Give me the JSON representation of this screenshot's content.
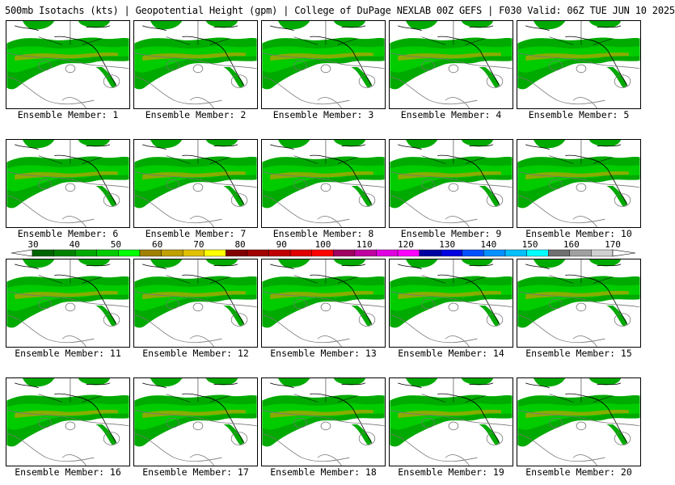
{
  "header": {
    "title": "500mb Isotachs (kts) | Geopotential Height (gpm) | College of DuPage NEXLAB   00Z GEFS | F030 Valid: 06Z TUE JUN 10 2025"
  },
  "panels": [
    {
      "label": "Ensemble Member: 1"
    },
    {
      "label": "Ensemble Member: 2"
    },
    {
      "label": "Ensemble Member: 3"
    },
    {
      "label": "Ensemble Member: 4"
    },
    {
      "label": "Ensemble Member: 5"
    },
    {
      "label": "Ensemble Member: 6"
    },
    {
      "label": "Ensemble Member: 7"
    },
    {
      "label": "Ensemble Member: 8"
    },
    {
      "label": "Ensemble Member: 9"
    },
    {
      "label": "Ensemble Member: 10"
    },
    {
      "label": "Ensemble Member: 11"
    },
    {
      "label": "Ensemble Member: 12"
    },
    {
      "label": "Ensemble Member: 13"
    },
    {
      "label": "Ensemble Member: 14"
    },
    {
      "label": "Ensemble Member: 15"
    },
    {
      "label": "Ensemble Member: 16"
    },
    {
      "label": "Ensemble Member: 17"
    },
    {
      "label": "Ensemble Member: 18"
    },
    {
      "label": "Ensemble Member: 19"
    },
    {
      "label": "Ensemble Member: 20"
    }
  ],
  "colorbar": {
    "ticks": [
      "30",
      "40",
      "50",
      "60",
      "70",
      "80",
      "90",
      "100",
      "110",
      "120",
      "130",
      "140",
      "150",
      "160",
      "170"
    ],
    "colors": [
      "#006400",
      "#008200",
      "#00aa00",
      "#00cc00",
      "#00ff00",
      "#a08000",
      "#c0a000",
      "#e0c000",
      "#ffff00",
      "#800000",
      "#a00000",
      "#c00000",
      "#e00000",
      "#ff0000",
      "#a00060",
      "#c000a0",
      "#e000e0",
      "#ff00ff",
      "#0000a0",
      "#0000e0",
      "#0050ff",
      "#0090ff",
      "#00c0ff",
      "#00ffff",
      "#707070",
      "#a0a0a0",
      "#d0d0d0"
    ]
  }
}
